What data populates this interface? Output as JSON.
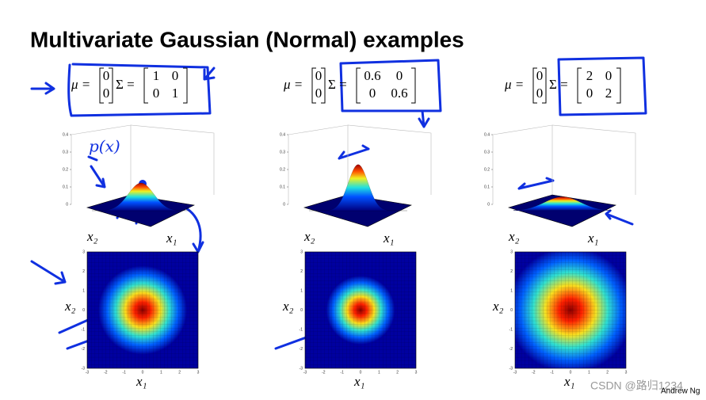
{
  "title": "Multivariate Gaussian (Normal) examples",
  "mu_symbol": "μ =",
  "sigma_symbol": "Σ =",
  "x1_label": "x₁",
  "x2_label": "x₂",
  "surface_z_ticks": [
    0,
    0.1,
    0.2,
    0.3,
    0.4
  ],
  "heatmap_ticks": [
    -3,
    -2,
    -1,
    0,
    1,
    2,
    3
  ],
  "panels": [
    {
      "mu": [
        0,
        0
      ],
      "sigma": [
        [
          1,
          0
        ],
        [
          0,
          1
        ]
      ]
    },
    {
      "mu": [
        0,
        0
      ],
      "sigma": [
        [
          0.6,
          0
        ],
        [
          0,
          0.6
        ]
      ]
    },
    {
      "mu": [
        0,
        0
      ],
      "sigma": [
        [
          2,
          0
        ],
        [
          0,
          2
        ]
      ]
    }
  ],
  "handwriting": "p(x)",
  "watermark": "CSDN @路归1234",
  "author": "Andrew Ng"
}
